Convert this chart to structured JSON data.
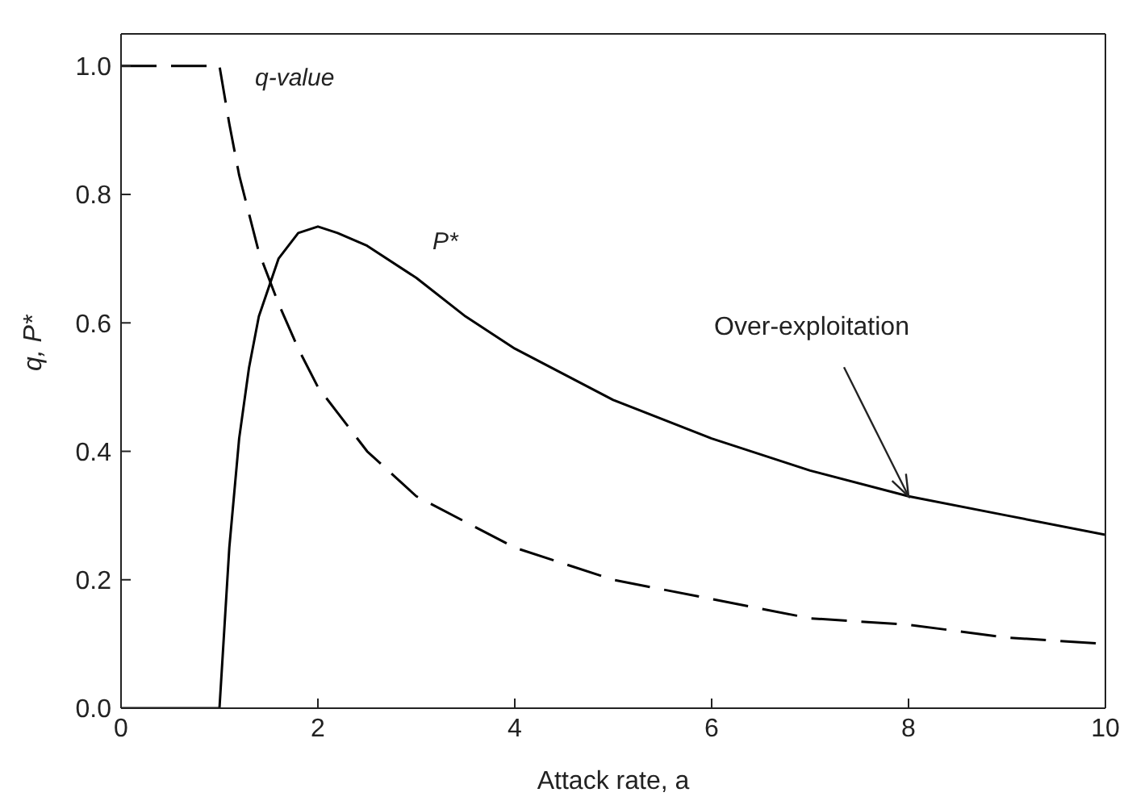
{
  "chart_data": {
    "type": "line",
    "xlabel": "Attack rate, a",
    "ylabel": "q, P*",
    "xlim": [
      0,
      10
    ],
    "xticks": [
      0,
      2,
      4,
      6,
      8,
      10
    ],
    "ylim": [
      0,
      1.05
    ],
    "yticks": [
      {
        "value": 0,
        "label": "0.0"
      },
      {
        "value": 0.2,
        "label": "0.2"
      },
      {
        "value": 0.4,
        "label": "0.4"
      },
      {
        "value": 0.6,
        "label": "0.6"
      },
      {
        "value": 0.8,
        "label": "0.8"
      },
      {
        "value": 1,
        "label": "1.0"
      }
    ],
    "grid": false,
    "legend": false,
    "marker": "none",
    "series": [
      {
        "name": "q-value",
        "color": "#000000",
        "line_style": "dashed",
        "x": [
          0,
          1,
          1.1,
          1.2,
          1.4,
          1.6,
          1.8,
          2,
          2.5,
          3,
          3.5,
          4,
          5,
          6,
          7,
          8,
          9,
          10
        ],
        "values": [
          1,
          1,
          0.91,
          0.83,
          0.71,
          0.63,
          0.56,
          0.5,
          0.4,
          0.33,
          0.29,
          0.25,
          0.2,
          0.17,
          0.14,
          0.13,
          0.11,
          0.1
        ]
      },
      {
        "name": "P*",
        "color": "#000000",
        "line_style": "solid",
        "x": [
          0,
          1,
          1.1,
          1.2,
          1.3,
          1.4,
          1.6,
          1.8,
          2,
          2.2,
          2.5,
          3,
          3.5,
          4,
          5,
          6,
          7,
          8,
          9,
          10
        ],
        "values": [
          0,
          0,
          0.25,
          0.42,
          0.53,
          0.61,
          0.7,
          0.74,
          0.75,
          0.74,
          0.72,
          0.67,
          0.61,
          0.56,
          0.48,
          0.42,
          0.37,
          0.33,
          0.3,
          0.27
        ]
      }
    ],
    "annotations": [
      {
        "text": "Over-exploitation",
        "x": 8,
        "y": 0.33
      }
    ]
  }
}
